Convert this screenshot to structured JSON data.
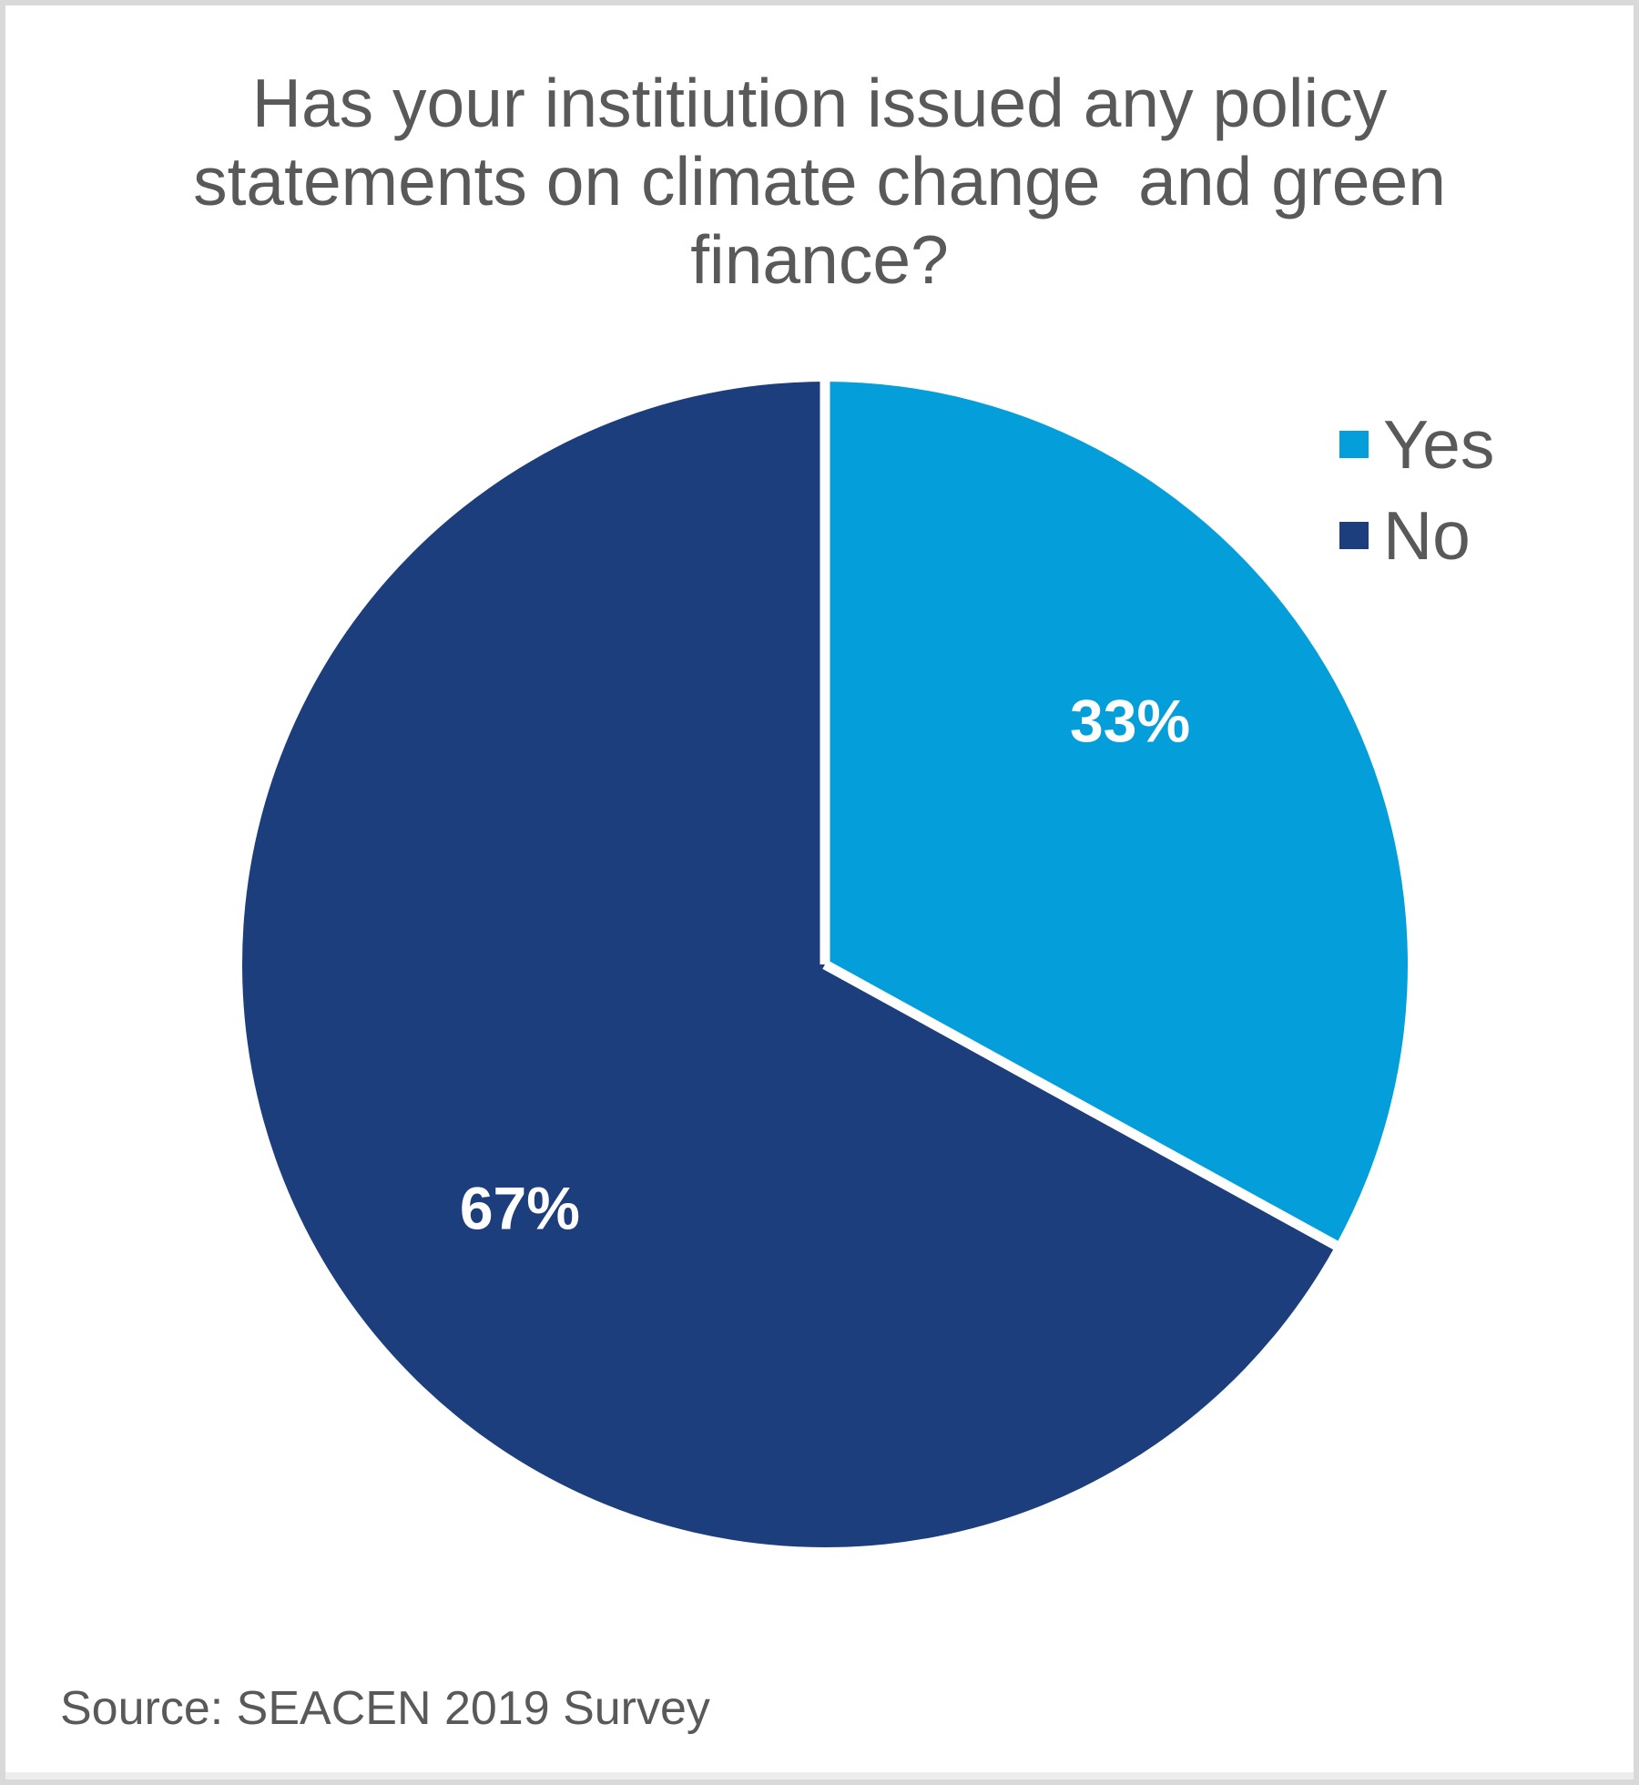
{
  "frame": {
    "border_color": "#d9d9d9",
    "background": "#ffffff"
  },
  "chart_data": {
    "type": "pie",
    "title": "Has your institiution issued any policy statements on climate change  and green finance?",
    "title_lines": [
      "Has your institiution issued any policy",
      "statements on climate change  and green",
      "finance?"
    ],
    "categories": [
      "Yes",
      "No"
    ],
    "values": [
      33,
      67
    ],
    "labels": [
      "33%",
      "67%"
    ],
    "colors": [
      "#049FDB",
      "#1C3E7D"
    ],
    "label_color": "#FFFFFF",
    "separator_color": "#FFFFFF",
    "start_angle_deg": 0,
    "direction": "clockwise",
    "legend_position": "right",
    "label_radius_frac": 0.67,
    "source": "Source: SEACEN 2019 Survey"
  },
  "text": {
    "title_color": "#595959",
    "legend_color": "#595959",
    "source_color": "#595959"
  }
}
